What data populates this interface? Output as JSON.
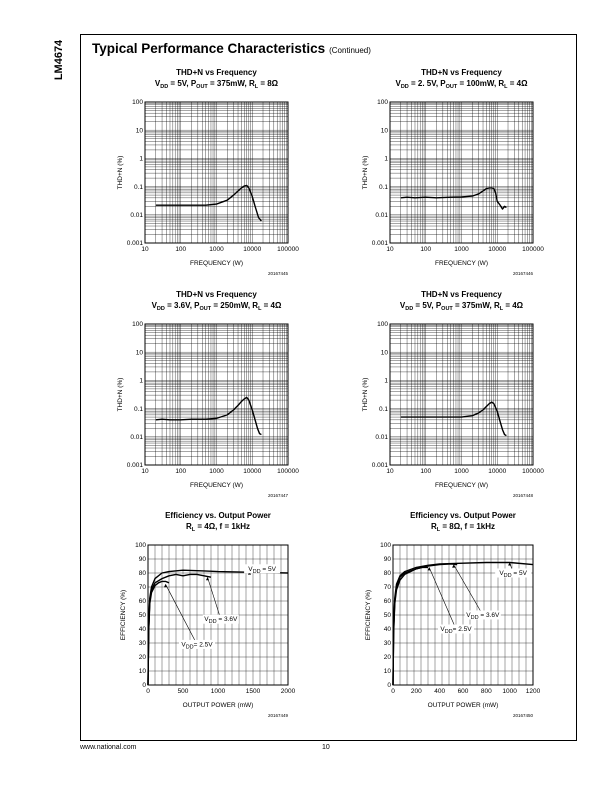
{
  "page": {
    "part_number": "LM4674",
    "heading": "Typical Performance Characteristics",
    "heading_note": "(Continued)",
    "footer_url": "www.national.com",
    "page_number": "10"
  },
  "chart_data": [
    {
      "type": "line",
      "title": "THD+N vs Frequency",
      "subtitle": "V_DD = 5V, P_OUT = 375mW, R_L = 8Ω",
      "subtitle_parts": {
        "v": "V",
        "vsub": "DD",
        "v_val": " = 5V, ",
        "p": "P",
        "psub": "OUT",
        "p_val": " = 375mW, ",
        "r": "R",
        "rsub": "L",
        "r_val": " = 8Ω"
      },
      "xlabel": "FREQUENCY (W)",
      "ylabel": "THD+N (%)",
      "xscale": "log",
      "yscale": "log",
      "xlim": [
        10,
        100000
      ],
      "ylim": [
        0.001,
        100
      ],
      "xticks": [
        "10",
        "100",
        "1000",
        "10000",
        "100000"
      ],
      "yticks": [
        "0.001",
        "0.01",
        "0.1",
        "1",
        "10",
        "100"
      ],
      "grid": true,
      "figure_id": "20167445",
      "series": [
        {
          "x": [
            20,
            50,
            100,
            200,
            500,
            1000,
            2000,
            3000,
            4000,
            5000,
            6000,
            7000,
            8000,
            10000,
            12000,
            15000,
            18000
          ],
          "y": [
            0.022,
            0.022,
            0.022,
            0.022,
            0.022,
            0.024,
            0.033,
            0.05,
            0.07,
            0.09,
            0.105,
            0.11,
            0.09,
            0.045,
            0.02,
            0.008,
            0.006
          ]
        }
      ]
    },
    {
      "type": "line",
      "title": "THD+N vs Frequency",
      "subtitle": "V_DD = 2. 5V, P_OUT = 100mW, R_L = 4Ω",
      "subtitle_parts": {
        "v": "V",
        "vsub": "DD",
        "v_val": " = 2. 5V, ",
        "p": "P",
        "psub": "OUT",
        "p_val": " = 100mW, ",
        "r": "R",
        "rsub": "L",
        "r_val": " = 4Ω"
      },
      "xlabel": "FREQUENCY (W)",
      "ylabel": "THD+N (%)",
      "xscale": "log",
      "yscale": "log",
      "xlim": [
        10,
        100000
      ],
      "ylim": [
        0.001,
        100
      ],
      "xticks": [
        "10",
        "100",
        "1000",
        "10000",
        "100000"
      ],
      "yticks": [
        "0.001",
        "0.01",
        "0.1",
        "1",
        "10",
        "100"
      ],
      "grid": true,
      "figure_id": "20167446",
      "series": [
        {
          "x": [
            20,
            30,
            50,
            100,
            200,
            500,
            1000,
            2000,
            3000,
            4000,
            5000,
            6000,
            7000,
            8000,
            9000,
            10000,
            12000,
            14000,
            16000,
            18000
          ],
          "y": [
            0.04,
            0.042,
            0.04,
            0.042,
            0.04,
            0.042,
            0.043,
            0.046,
            0.055,
            0.07,
            0.085,
            0.09,
            0.09,
            0.085,
            0.06,
            0.03,
            0.022,
            0.016,
            0.02,
            0.018
          ]
        }
      ]
    },
    {
      "type": "line",
      "title": "THD+N vs Frequency",
      "subtitle": "V_DD = 3.6V, P_OUT = 250mW, R_L = 4Ω",
      "subtitle_parts": {
        "v": "V",
        "vsub": "DD",
        "v_val": " = 3.6V, ",
        "p": "P",
        "psub": "OUT",
        "p_val": " = 250mW, ",
        "r": "R",
        "rsub": "L",
        "r_val": " = 4Ω"
      },
      "xlabel": "FREQUENCY (W)",
      "ylabel": "THD+N (%)",
      "xscale": "log",
      "yscale": "log",
      "xlim": [
        10,
        100000
      ],
      "ylim": [
        0.001,
        100
      ],
      "xticks": [
        "10",
        "100",
        "1000",
        "10000",
        "100000"
      ],
      "yticks": [
        "0.001",
        "0.01",
        "0.1",
        "1",
        "10",
        "100"
      ],
      "grid": true,
      "figure_id": "20167447",
      "series": [
        {
          "x": [
            20,
            30,
            50,
            100,
            200,
            500,
            1000,
            2000,
            3000,
            4000,
            5000,
            6000,
            7000,
            8000,
            10000,
            12000,
            14000,
            16000,
            18000
          ],
          "y": [
            0.04,
            0.042,
            0.04,
            0.04,
            0.042,
            0.042,
            0.045,
            0.06,
            0.09,
            0.13,
            0.18,
            0.22,
            0.25,
            0.2,
            0.09,
            0.04,
            0.02,
            0.013,
            0.012
          ]
        }
      ]
    },
    {
      "type": "line",
      "title": "THD+N vs Frequency",
      "subtitle": "V_DD = 5V, P_OUT = 375mW, R_L = 4Ω",
      "subtitle_parts": {
        "v": "V",
        "vsub": "DD",
        "v_val": " = 5V, ",
        "p": "P",
        "psub": "OUT",
        "p_val": " = 375mW, ",
        "r": "R",
        "rsub": "L",
        "r_val": " = 4Ω"
      },
      "xlabel": "FREQUENCY (W)",
      "ylabel": "THD+N (%)",
      "xscale": "log",
      "yscale": "log",
      "xlim": [
        10,
        100000
      ],
      "ylim": [
        0.001,
        100
      ],
      "xticks": [
        "10",
        "100",
        "1000",
        "10000",
        "100000"
      ],
      "yticks": [
        "0.001",
        "0.01",
        "0.1",
        "1",
        "10",
        "100"
      ],
      "grid": true,
      "figure_id": "20167448",
      "series": [
        {
          "x": [
            20,
            50,
            100,
            200,
            500,
            1000,
            2000,
            3000,
            4000,
            5000,
            6000,
            7000,
            8000,
            10000,
            12000,
            14000,
            16000,
            18000
          ],
          "y": [
            0.05,
            0.05,
            0.05,
            0.05,
            0.05,
            0.05,
            0.056,
            0.07,
            0.09,
            0.12,
            0.15,
            0.17,
            0.15,
            0.08,
            0.035,
            0.018,
            0.012,
            0.011
          ]
        }
      ]
    },
    {
      "type": "line",
      "title": "Efficiency vs. Output Power",
      "subtitle": "R_L = 4Ω, f = 1kHz",
      "subtitle_parts": {
        "r": "R",
        "rsub": "L",
        "r_val": " = 4Ω, f = 1kHz"
      },
      "xlabel": "OUTPUT POWER (mW)",
      "ylabel": "EFFICIENCY (%)",
      "xscale": "linear",
      "yscale": "linear",
      "xlim": [
        0,
        2000
      ],
      "ylim": [
        0,
        100
      ],
      "xticks": [
        "0",
        "500",
        "1000",
        "1500",
        "2000"
      ],
      "yticks": [
        "0",
        "10",
        "20",
        "30",
        "40",
        "50",
        "60",
        "70",
        "80",
        "90",
        "100"
      ],
      "grid": true,
      "figure_id": "20167449",
      "series": [
        {
          "name": "V_DD = 5V",
          "x": [
            0,
            10,
            25,
            50,
            100,
            200,
            300,
            500,
            800,
            1000,
            1500,
            2000
          ],
          "y": [
            0,
            40,
            62,
            70,
            76,
            80,
            81,
            82,
            81.5,
            81,
            80.5,
            80
          ]
        },
        {
          "name": "V_DD = 3.6V",
          "x": [
            0,
            10,
            25,
            50,
            100,
            200,
            300,
            400,
            500,
            600,
            700,
            800,
            900
          ],
          "y": [
            0,
            40,
            60,
            68,
            73,
            76,
            78,
            79,
            78,
            79,
            79,
            78,
            77
          ]
        },
        {
          "name": "V_DD= 2.5V",
          "x": [
            0,
            10,
            25,
            50,
            100,
            150,
            200,
            250,
            300
          ],
          "y": [
            0,
            38,
            58,
            66,
            71,
            73,
            74,
            74,
            73
          ]
        }
      ],
      "annotations": [
        {
          "text": "V_DD = 5V",
          "x": 1630,
          "y": 83,
          "ax": 1450,
          "ay": 81
        },
        {
          "text": "V_DD = 3.6V",
          "x": 1040,
          "y": 47,
          "ax": 850,
          "ay": 77
        },
        {
          "text": "V_DD= 2.5V",
          "x": 700,
          "y": 29,
          "ax": 250,
          "ay": 72
        }
      ]
    },
    {
      "type": "line",
      "title": "Efficiency vs. Output Power",
      "subtitle": "R_L = 8Ω, f = 1kHz",
      "subtitle_parts": {
        "r": "R",
        "rsub": "L",
        "r_val": " = 8Ω, f = 1kHz"
      },
      "xlabel": "OUTPUT POWER (mW)",
      "ylabel": "EFFICIENCY (%)",
      "xscale": "linear",
      "yscale": "linear",
      "xlim": [
        0,
        1200
      ],
      "ylim": [
        0,
        100
      ],
      "xticks": [
        "0",
        "200",
        "400",
        "600",
        "800",
        "1000",
        "1200"
      ],
      "yticks": [
        "0",
        "10",
        "20",
        "30",
        "40",
        "50",
        "60",
        "70",
        "80",
        "90",
        "100"
      ],
      "grid": true,
      "figure_id": "20167450",
      "series": [
        {
          "name": "V_DD = 5V",
          "x": [
            0,
            5,
            15,
            30,
            60,
            100,
            200,
            300,
            400,
            600,
            800,
            1000,
            1200
          ],
          "y": [
            0,
            40,
            62,
            72,
            78,
            81,
            84,
            85.5,
            86.5,
            87,
            87.5,
            87.5,
            86
          ]
        },
        {
          "name": "V_DD = 3.6V",
          "x": [
            0,
            5,
            15,
            30,
            60,
            100,
            200,
            300,
            400,
            500,
            550
          ],
          "y": [
            0,
            38,
            60,
            70,
            77,
            80,
            83,
            85,
            86,
            86.5,
            86
          ]
        },
        {
          "name": "V_DD= 2.5V",
          "x": [
            0,
            5,
            15,
            30,
            60,
            100,
            150,
            200,
            250,
            300
          ],
          "y": [
            0,
            36,
            58,
            68,
            75,
            79,
            81,
            83,
            84,
            84
          ]
        }
      ],
      "annotations": [
        {
          "text": "V_DD = 5V",
          "x": 1030,
          "y": 80,
          "ax": 1000,
          "ay": 87.5
        },
        {
          "text": "V_DD = 3.6V",
          "x": 770,
          "y": 50,
          "ax": 520,
          "ay": 86
        },
        {
          "text": "V_DD= 2.5V",
          "x": 540,
          "y": 40,
          "ax": 310,
          "ay": 84
        }
      ]
    }
  ]
}
